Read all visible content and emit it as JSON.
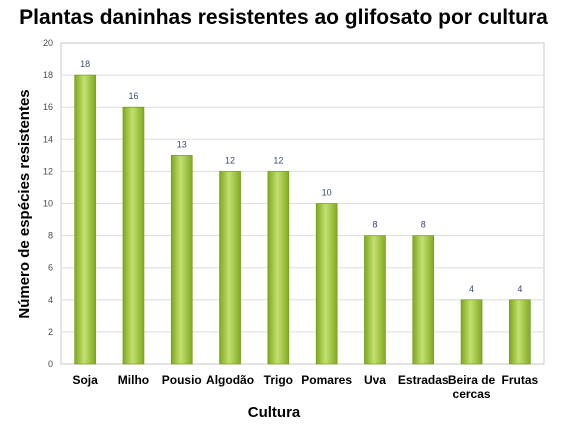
{
  "chart_data": {
    "type": "bar",
    "title": "Plantas daninhas resistentes ao glifosato por cultura",
    "xlabel": "Cultura",
    "ylabel": "Número de espécies resistentes",
    "ylim": [
      0,
      20
    ],
    "yticks": [
      0,
      2,
      4,
      6,
      8,
      10,
      12,
      14,
      16,
      18,
      20
    ],
    "categories": [
      "Soja",
      "Milho",
      "Pousio",
      "Algodão",
      "Trigo",
      "Pomares",
      "Uva",
      "Estradas",
      "Beira de cercas",
      "Frutas"
    ],
    "category_lines": [
      [
        "Soja"
      ],
      [
        "Milho"
      ],
      [
        "Pousio"
      ],
      [
        "Algodão"
      ],
      [
        "Trigo"
      ],
      [
        "Pomares"
      ],
      [
        "Uva"
      ],
      [
        "Estradas"
      ],
      [
        "Beira de",
        "cercas"
      ],
      [
        "Frutas"
      ]
    ],
    "values": [
      18,
      16,
      13,
      12,
      12,
      10,
      8,
      8,
      4,
      4
    ],
    "grid": true,
    "legend": "none",
    "bar_color": "#9ac530"
  }
}
